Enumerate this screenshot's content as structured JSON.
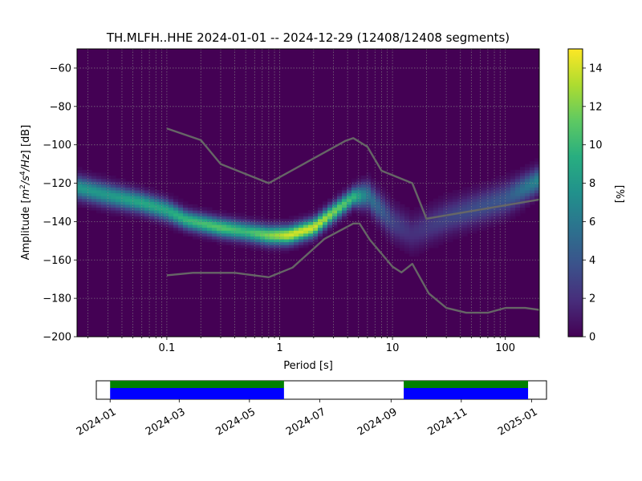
{
  "title": "TH.MLFH..HHE   2024-01-01 -- 2024-12-29  (12408/12408 segments)",
  "chart_data": [
    {
      "type": "heatmap",
      "subtype": "probabilistic-power-spectral-density",
      "xlabel": "Period [s]",
      "ylabel_parts": [
        "Amplitude [",
        "m",
        "2",
        "/s",
        "4",
        "/Hz",
        "] [dB]"
      ],
      "x_scale": "log",
      "xlim": [
        0.016,
        200
      ],
      "ylim": [
        -200,
        -50
      ],
      "x_ticks": [
        {
          "v": 0.1,
          "label": "0.1"
        },
        {
          "v": 1,
          "label": "1"
        },
        {
          "v": 10,
          "label": "10"
        },
        {
          "v": 100,
          "label": "100"
        }
      ],
      "y_ticks": [
        {
          "v": -60,
          "label": "−60"
        },
        {
          "v": -80,
          "label": "−80"
        },
        {
          "v": -100,
          "label": "−100"
        },
        {
          "v": -120,
          "label": "−120"
        },
        {
          "v": -140,
          "label": "−140"
        },
        {
          "v": -160,
          "label": "−160"
        },
        {
          "v": -180,
          "label": "−180"
        },
        {
          "v": -200,
          "label": "−200"
        }
      ],
      "grid": true,
      "density_ridge": [
        {
          "period": 0.016,
          "db": -122,
          "peak": 8
        },
        {
          "period": 0.03,
          "db": -126,
          "peak": 8
        },
        {
          "period": 0.06,
          "db": -130,
          "peak": 9
        },
        {
          "period": 0.1,
          "db": -134,
          "peak": 9
        },
        {
          "period": 0.15,
          "db": -139,
          "peak": 10
        },
        {
          "period": 0.3,
          "db": -143,
          "peak": 11
        },
        {
          "period": 0.5,
          "db": -145,
          "peak": 10
        },
        {
          "period": 0.8,
          "db": -147,
          "peak": 12
        },
        {
          "period": 1.2,
          "db": -147,
          "peak": 14
        },
        {
          "period": 2,
          "db": -143,
          "peak": 14
        },
        {
          "period": 3,
          "db": -135,
          "peak": 12
        },
        {
          "period": 4.5,
          "db": -127,
          "peak": 10
        },
        {
          "period": 6,
          "db": -126,
          "peak": 6
        },
        {
          "period": 10,
          "db": -140,
          "peak": 3
        },
        {
          "period": 15,
          "db": -146,
          "peak": 2
        },
        {
          "period": 30,
          "db": -138,
          "peak": 3
        },
        {
          "period": 100,
          "db": -128,
          "peak": 4
        },
        {
          "period": 200,
          "db": -118,
          "peak": 7
        }
      ],
      "series": [
        {
          "points": [
            [
              0.1,
              -91.5
            ],
            [
              0.2,
              -97.5
            ],
            [
              0.3,
              -110
            ],
            [
              0.8,
              -120
            ],
            [
              3.8,
              -98
            ],
            [
              4.5,
              -96.5
            ],
            [
              6,
              -101
            ],
            [
              8,
              -113.5
            ],
            [
              15,
              -120
            ],
            [
              20,
              -138.5
            ],
            [
              200,
              -128.5
            ]
          ]
        },
        {
          "points": [
            [
              0.1,
              -168
            ],
            [
              0.17,
              -166.7
            ],
            [
              0.4,
              -166.7
            ],
            [
              0.8,
              -169
            ],
            [
              1.3,
              -164
            ],
            [
              2.5,
              -149
            ],
            [
              4.5,
              -141
            ],
            [
              5.1,
              -141
            ],
            [
              6.3,
              -149.5
            ],
            [
              10,
              -163.5
            ],
            [
              12,
              -166.5
            ],
            [
              15,
              -162
            ],
            [
              21,
              -177.5
            ],
            [
              30,
              -185
            ],
            [
              45,
              -187.5
            ],
            [
              70,
              -187.5
            ],
            [
              100,
              -185
            ],
            [
              150,
              -185
            ],
            [
              200,
              -186
            ]
          ]
        }
      ],
      "colors": {
        "noise_model": "#666666",
        "grid": "#888888"
      }
    },
    {
      "type": "colorbar",
      "label": "[%]",
      "range": [
        0,
        15
      ],
      "ticks": [
        {
          "v": 0,
          "label": "0"
        },
        {
          "v": 2,
          "label": "2"
        },
        {
          "v": 4,
          "label": "4"
        },
        {
          "v": 6,
          "label": "6"
        },
        {
          "v": 8,
          "label": "8"
        },
        {
          "v": 10,
          "label": "10"
        },
        {
          "v": 12,
          "label": "12"
        },
        {
          "v": 14,
          "label": "14"
        }
      ],
      "colormap": "viridis"
    },
    {
      "type": "timeline",
      "range": [
        "2023-12-20",
        "2025-01-14"
      ],
      "ticks": [
        "2024-01",
        "2024-03",
        "2024-05",
        "2024-07",
        "2024-09",
        "2024-11",
        "2025-01"
      ],
      "coverage": [
        {
          "start": "2024-01-01",
          "end": "2024-05-31"
        },
        {
          "start": "2024-09-12",
          "end": "2024-12-29"
        }
      ],
      "colors": {
        "processed": "#008000",
        "available": "#0000ff"
      }
    }
  ]
}
